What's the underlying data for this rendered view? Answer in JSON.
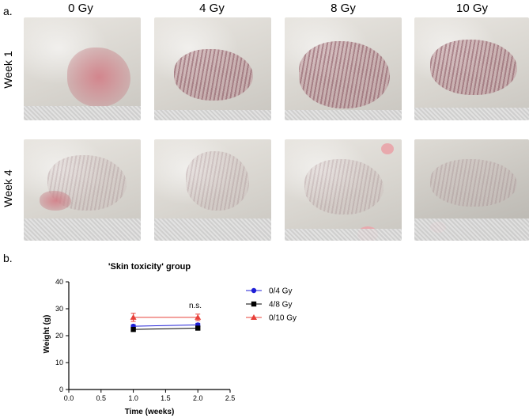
{
  "panel_a": {
    "label": "a.",
    "columns": [
      "0 Gy",
      "4 Gy",
      "8 Gy",
      "10 Gy"
    ],
    "rows": [
      "Week 1",
      "Week 4"
    ]
  },
  "panel_b": {
    "label": "b."
  },
  "chart_data": {
    "type": "line",
    "title": "'Skin toxicity' group",
    "xlabel": "Time (weeks)",
    "ylabel": "Weight (g)",
    "xlim": [
      0.0,
      2.5
    ],
    "ylim": [
      0,
      40
    ],
    "xticks": [
      "0.0",
      "0.5",
      "1.0",
      "1.5",
      "2.0",
      "2.5"
    ],
    "yticks": [
      "0",
      "10",
      "20",
      "30",
      "40"
    ],
    "annotation": "n.s.",
    "series": [
      {
        "name": "0/4 Gy",
        "color": "#1f1fd6",
        "marker": "circle",
        "x": [
          1,
          2
        ],
        "y": [
          23.5,
          24.0
        ],
        "err": [
          0.6,
          0.6
        ]
      },
      {
        "name": "4/8 Gy",
        "color": "#000000",
        "marker": "square",
        "x": [
          1,
          2
        ],
        "y": [
          22.3,
          22.8
        ],
        "err": [
          0.5,
          0.5
        ]
      },
      {
        "name": "0/10 Gy",
        "color": "#e8403a",
        "marker": "triangle",
        "x": [
          1,
          2
        ],
        "y": [
          26.8,
          26.8
        ],
        "err": [
          1.5,
          1.2
        ]
      }
    ]
  }
}
